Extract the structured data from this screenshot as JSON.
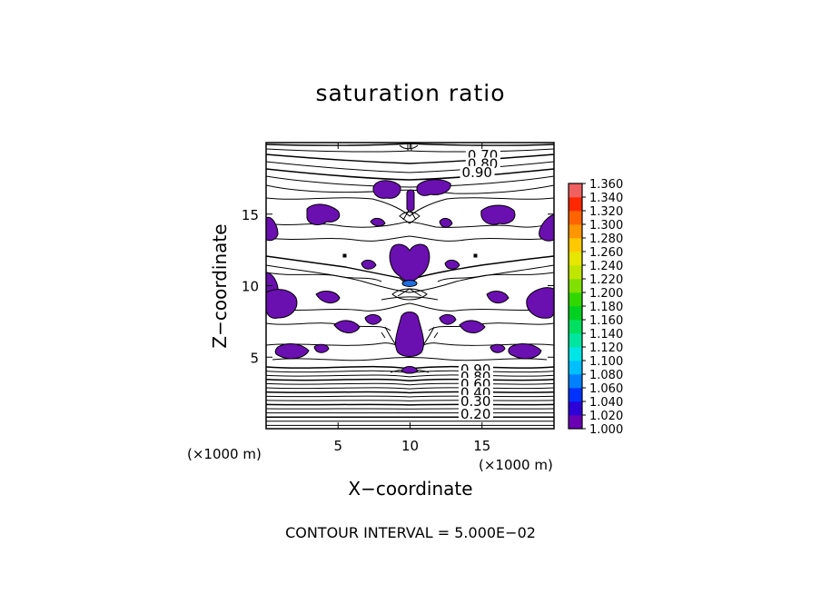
{
  "chart_data": {
    "type": "heatmap",
    "title": "saturation ratio",
    "xlabel": "X−coordinate",
    "ylabel": "Z−coordinate",
    "x_unit": "(×1000 m)",
    "y_unit": "(×1000 m)",
    "xlim": [
      0,
      20
    ],
    "ylim": [
      0,
      20
    ],
    "x_ticks": [
      5,
      10,
      15
    ],
    "y_ticks": [
      5,
      10,
      15
    ],
    "footer": "CONTOUR INTERVAL = 5.000E−02",
    "contour_labels": [
      {
        "text": "0.70",
        "x": 14.0,
        "z": 18.8
      },
      {
        "text": "0.80",
        "x": 14.0,
        "z": 18.2
      },
      {
        "text": "0.90",
        "x": 13.6,
        "z": 17.6
      },
      {
        "text": "0.90",
        "x": 13.5,
        "z": 3.8
      },
      {
        "text": "0.80",
        "x": 13.5,
        "z": 3.3
      },
      {
        "text": "0.60",
        "x": 13.5,
        "z": 2.8
      },
      {
        "text": "0.40",
        "x": 13.5,
        "z": 2.2
      },
      {
        "text": "0.30",
        "x": 13.5,
        "z": 1.6
      },
      {
        "text": "0.20",
        "x": 13.5,
        "z": 0.7
      }
    ],
    "colorbar": {
      "min": 1.0,
      "max": 1.36,
      "step": 0.02,
      "labels": [
        "1.360",
        "1.340",
        "1.320",
        "1.300",
        "1.280",
        "1.260",
        "1.240",
        "1.220",
        "1.200",
        "1.180",
        "1.160",
        "1.140",
        "1.120",
        "1.100",
        "1.080",
        "1.060",
        "1.040",
        "1.020",
        "1.000"
      ],
      "colors": [
        "#6a00b4",
        "#2d00d8",
        "#0032ff",
        "#0080ff",
        "#00bfff",
        "#00e6e6",
        "#00e6a0",
        "#00e060",
        "#00d020",
        "#30d800",
        "#80e000",
        "#c0e600",
        "#e6e600",
        "#ffc800",
        "#ff9600",
        "#ff6400",
        "#ff2800",
        "#f06060"
      ]
    },
    "supersaturated_color": "#6a0fb0",
    "high_spot_color": "#1e6fe0"
  }
}
